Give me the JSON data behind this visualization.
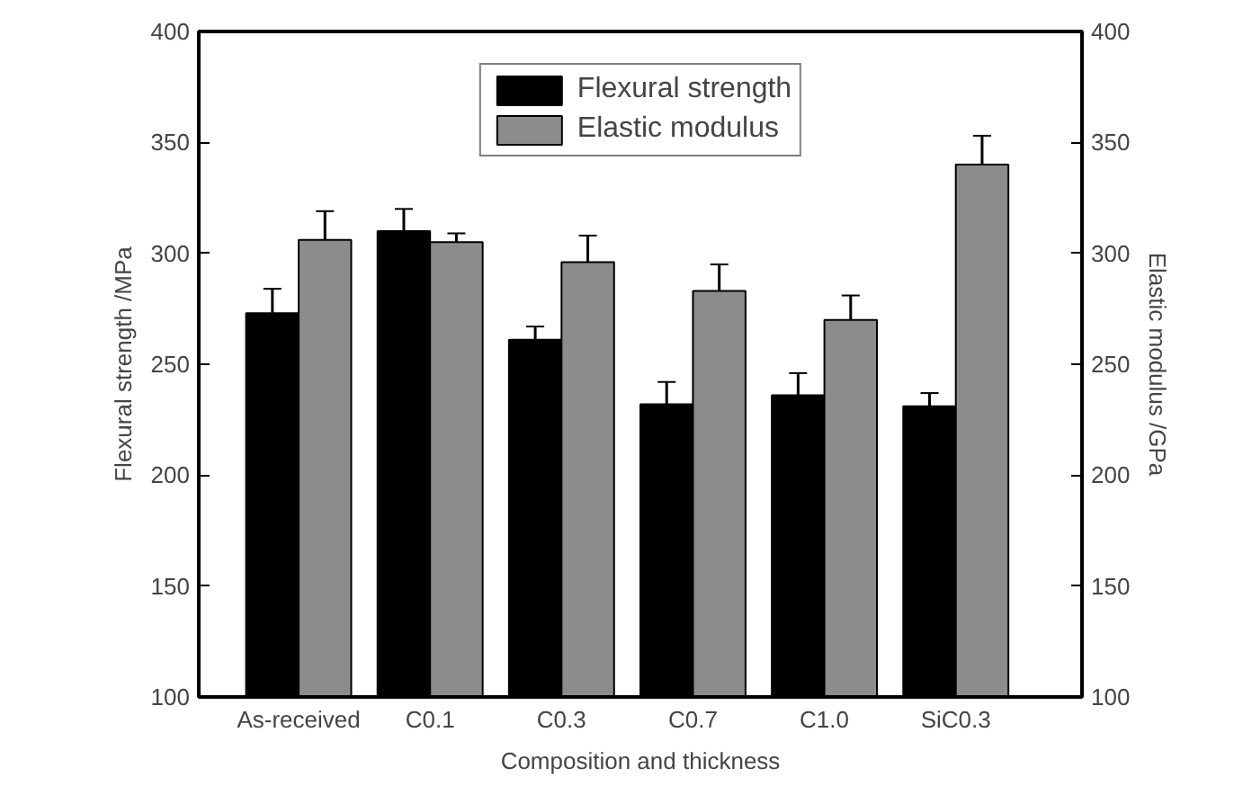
{
  "chart_data": {
    "type": "bar",
    "xlabel": "Composition and thickness",
    "ylabel": "Flexural strength /MPa",
    "y2label": "Elastic modulus /GPa",
    "categories": [
      "As-received",
      "C0.1",
      "C0.3",
      "C0.7",
      "C1.0",
      "SiC0.3"
    ],
    "series": [
      {
        "name": "Flexural strength",
        "color": "#000000",
        "values": [
          273,
          310,
          261,
          232,
          236,
          231
        ],
        "errors": [
          11,
          10,
          6,
          10,
          10,
          6
        ]
      },
      {
        "name": "Elastic modulus",
        "color": "#8c8c8c",
        "axis": "y2",
        "values": [
          306,
          305,
          296,
          283,
          270,
          340
        ],
        "errors": [
          13,
          4,
          12,
          12,
          11,
          13
        ]
      }
    ],
    "ylim": [
      100,
      400
    ],
    "yticks": [
      100,
      150,
      200,
      250,
      300,
      350,
      400
    ],
    "y2lim": [
      100,
      400
    ],
    "y2ticks": [
      100,
      150,
      200,
      250,
      300,
      350,
      400
    ],
    "grid": false,
    "legend": "top"
  }
}
